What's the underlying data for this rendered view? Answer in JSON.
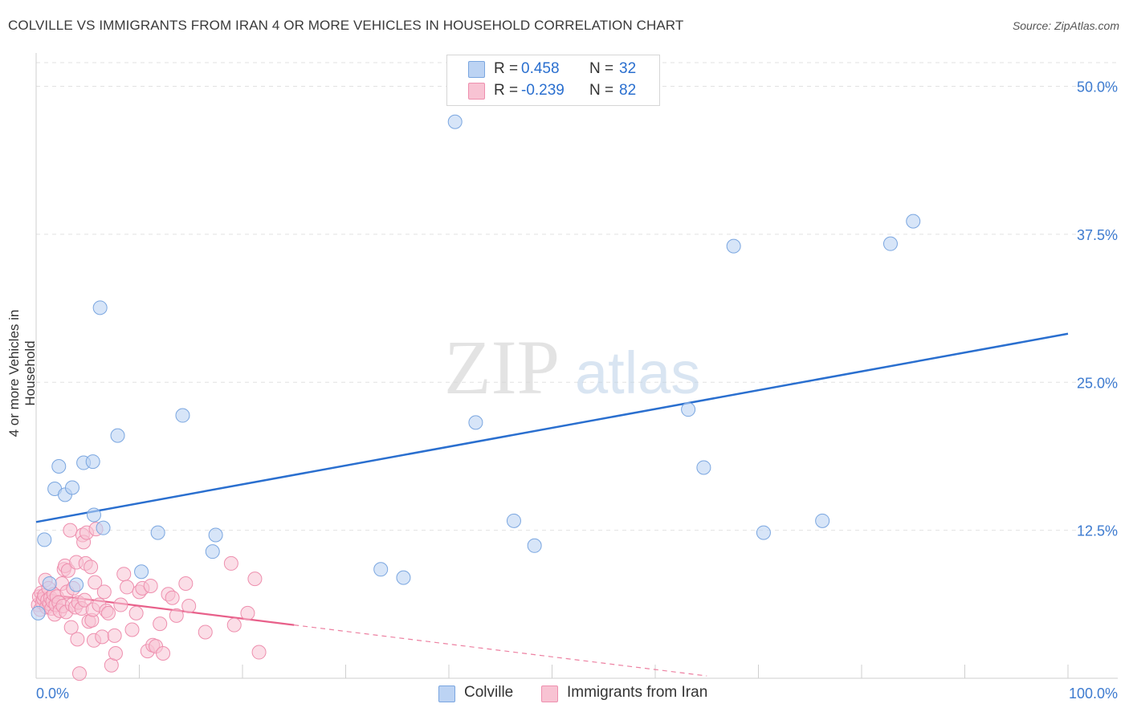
{
  "title": "COLVILLE VS IMMIGRANTS FROM IRAN 4 OR MORE VEHICLES IN HOUSEHOLD CORRELATION CHART",
  "source": "Source: ZipAtlas.com",
  "watermark": {
    "zip": "ZIP",
    "atlas": "atlas"
  },
  "colors": {
    "blue_fill": "#bcd3f3",
    "blue_stroke": "#7aa6e0",
    "blue_line": "#2a6fcf",
    "pink_fill": "#f8c3d3",
    "pink_stroke": "#ee8fae",
    "pink_line": "#e8608a",
    "tick_text": "#3d7bd0",
    "grid": "#e2e2e2"
  },
  "legend": {
    "rows": [
      {
        "r_label": "R =",
        "r_value": "0.458",
        "n_label": "N =",
        "n_value": "32",
        "color": "#bcd3f3",
        "stroke": "#7aa6e0"
      },
      {
        "r_label": "R =",
        "r_value": "-0.239",
        "n_label": "N =",
        "n_value": "82",
        "color": "#f8c3d3",
        "stroke": "#ee8fae"
      }
    ]
  },
  "bottom_legend": [
    {
      "label": "Colville",
      "color": "#bcd3f3",
      "stroke": "#7aa6e0"
    },
    {
      "label": "Immigrants from Iran",
      "color": "#f8c3d3",
      "stroke": "#ee8fae"
    }
  ],
  "chart_data": {
    "type": "scatter",
    "title": "COLVILLE VS IMMIGRANTS FROM IRAN 4 OR MORE VEHICLES IN HOUSEHOLD CORRELATION CHART",
    "xlabel": "",
    "ylabel": "4 or more Vehicles in Household",
    "xlim": [
      0,
      100
    ],
    "ylim": [
      0,
      52
    ],
    "x_tick_labels": [
      "0.0%",
      "100.0%"
    ],
    "y_ticks": [
      12.5,
      25.0,
      37.5,
      50.0
    ],
    "y_tick_labels": [
      "12.5%",
      "25.0%",
      "37.5%",
      "50.0%"
    ],
    "series": [
      {
        "name": "Colville",
        "points": [
          [
            0.2,
            5.5
          ],
          [
            0.8,
            11.7
          ],
          [
            1.3,
            8.0
          ],
          [
            1.8,
            16.0
          ],
          [
            2.2,
            17.9
          ],
          [
            2.8,
            15.5
          ],
          [
            3.5,
            16.1
          ],
          [
            3.9,
            7.9
          ],
          [
            4.6,
            18.2
          ],
          [
            5.5,
            18.3
          ],
          [
            5.6,
            13.8
          ],
          [
            6.2,
            31.3
          ],
          [
            6.5,
            12.7
          ],
          [
            7.9,
            20.5
          ],
          [
            10.2,
            9.0
          ],
          [
            11.8,
            12.3
          ],
          [
            14.2,
            22.2
          ],
          [
            17.1,
            10.7
          ],
          [
            17.4,
            12.1
          ],
          [
            33.4,
            9.2
          ],
          [
            35.6,
            8.5
          ],
          [
            40.6,
            47.0
          ],
          [
            42.6,
            21.6
          ],
          [
            46.3,
            13.3
          ],
          [
            48.3,
            11.2
          ],
          [
            63.2,
            22.7
          ],
          [
            64.7,
            17.8
          ],
          [
            67.6,
            36.5
          ],
          [
            70.5,
            12.3
          ],
          [
            76.2,
            13.3
          ],
          [
            82.8,
            36.7
          ],
          [
            85.0,
            38.6
          ]
        ],
        "trend": {
          "x": [
            0,
            100
          ],
          "y": [
            13.2,
            29.1
          ]
        }
      },
      {
        "name": "Immigrants from Iran",
        "points": [
          [
            0.2,
            6.2
          ],
          [
            0.3,
            6.9
          ],
          [
            0.4,
            5.8
          ],
          [
            0.5,
            7.2
          ],
          [
            0.6,
            6.4
          ],
          [
            0.7,
            6.7
          ],
          [
            0.8,
            7.0
          ],
          [
            0.9,
            8.3
          ],
          [
            1.0,
            6.0
          ],
          [
            1.1,
            6.6
          ],
          [
            1.2,
            7.6
          ],
          [
            1.3,
            6.3
          ],
          [
            1.4,
            6.8
          ],
          [
            1.5,
            5.9
          ],
          [
            1.6,
            6.5
          ],
          [
            1.7,
            7.1
          ],
          [
            1.8,
            5.4
          ],
          [
            1.9,
            6.2
          ],
          [
            2.0,
            6.9
          ],
          [
            2.2,
            6.4
          ],
          [
            2.3,
            5.7
          ],
          [
            2.5,
            8.0
          ],
          [
            2.6,
            6.1
          ],
          [
            2.7,
            9.2
          ],
          [
            2.8,
            9.5
          ],
          [
            2.9,
            5.6
          ],
          [
            3.0,
            7.3
          ],
          [
            3.1,
            9.1
          ],
          [
            3.3,
            12.5
          ],
          [
            3.4,
            4.3
          ],
          [
            3.5,
            6.2
          ],
          [
            3.6,
            7.6
          ],
          [
            3.8,
            6.0
          ],
          [
            3.9,
            9.8
          ],
          [
            4.0,
            3.3
          ],
          [
            4.1,
            6.4
          ],
          [
            4.2,
            0.4
          ],
          [
            4.4,
            5.9
          ],
          [
            4.5,
            12.1
          ],
          [
            4.6,
            11.5
          ],
          [
            4.7,
            6.6
          ],
          [
            4.8,
            9.7
          ],
          [
            4.9,
            12.3
          ],
          [
            5.1,
            4.8
          ],
          [
            5.3,
            9.4
          ],
          [
            5.4,
            4.9
          ],
          [
            5.5,
            5.8
          ],
          [
            5.6,
            3.2
          ],
          [
            5.7,
            8.1
          ],
          [
            5.8,
            12.6
          ],
          [
            6.1,
            6.2
          ],
          [
            6.4,
            3.5
          ],
          [
            6.6,
            7.3
          ],
          [
            6.8,
            5.7
          ],
          [
            7.0,
            5.5
          ],
          [
            7.3,
            1.1
          ],
          [
            7.6,
            3.6
          ],
          [
            7.7,
            2.1
          ],
          [
            8.2,
            6.2
          ],
          [
            8.5,
            8.8
          ],
          [
            8.8,
            7.7
          ],
          [
            9.3,
            4.1
          ],
          [
            9.7,
            5.5
          ],
          [
            10.0,
            7.3
          ],
          [
            10.3,
            7.6
          ],
          [
            10.8,
            2.3
          ],
          [
            11.1,
            7.8
          ],
          [
            11.3,
            2.8
          ],
          [
            11.6,
            2.7
          ],
          [
            12.0,
            4.6
          ],
          [
            12.3,
            2.1
          ],
          [
            12.8,
            7.1
          ],
          [
            13.2,
            6.8
          ],
          [
            13.6,
            5.3
          ],
          [
            14.5,
            8.0
          ],
          [
            14.8,
            6.1
          ],
          [
            16.4,
            3.9
          ],
          [
            18.9,
            9.7
          ],
          [
            19.2,
            4.5
          ],
          [
            20.5,
            5.5
          ],
          [
            21.2,
            8.4
          ],
          [
            21.6,
            2.2
          ]
        ],
        "trend": {
          "x": [
            0,
            25
          ],
          "y": [
            7.2,
            4.5
          ]
        },
        "trend_extension": {
          "x": [
            25,
            65
          ],
          "y": [
            4.5,
            0.2
          ]
        }
      }
    ]
  }
}
